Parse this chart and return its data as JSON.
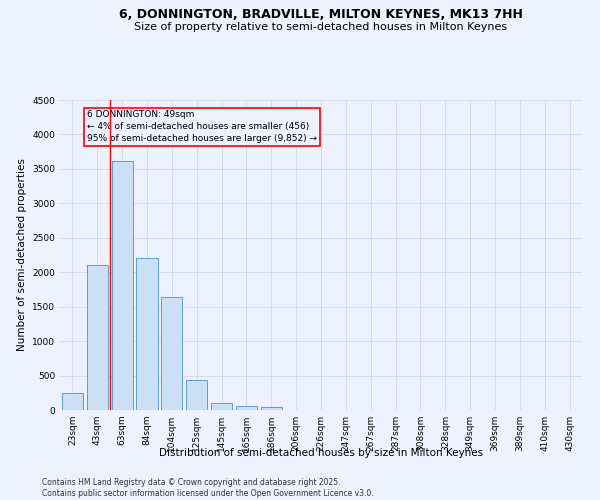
{
  "title": "6, DONNINGTON, BRADVILLE, MILTON KEYNES, MK13 7HH",
  "subtitle": "Size of property relative to semi-detached houses in Milton Keynes",
  "xlabel": "Distribution of semi-detached houses by size in Milton Keynes",
  "ylabel": "Number of semi-detached properties",
  "footer": "Contains HM Land Registry data © Crown copyright and database right 2025.\nContains public sector information licensed under the Open Government Licence v3.0.",
  "categories": [
    "23sqm",
    "43sqm",
    "63sqm",
    "84sqm",
    "104sqm",
    "125sqm",
    "145sqm",
    "165sqm",
    "186sqm",
    "206sqm",
    "226sqm",
    "247sqm",
    "267sqm",
    "287sqm",
    "308sqm",
    "328sqm",
    "349sqm",
    "369sqm",
    "389sqm",
    "410sqm",
    "430sqm"
  ],
  "values": [
    245,
    2100,
    3620,
    2200,
    1640,
    440,
    105,
    60,
    45,
    0,
    0,
    0,
    0,
    0,
    0,
    0,
    0,
    0,
    0,
    0,
    0
  ],
  "bar_color": "#cce0f5",
  "bar_edge_color": "#5b9bd5",
  "red_line_x": 1.5,
  "annotation_text": "6 DONNINGTON: 49sqm\n← 4% of semi-detached houses are smaller (456)\n95% of semi-detached houses are larger (9,852) →",
  "ylim": [
    0,
    4500
  ],
  "background_color": "#eef2ff",
  "grid_color": "#c8d4e8",
  "title_fontsize": 9,
  "subtitle_fontsize": 8,
  "axis_label_fontsize": 7.5,
  "tick_fontsize": 6.5,
  "annotation_fontsize": 6.5,
  "footer_fontsize": 5.5
}
